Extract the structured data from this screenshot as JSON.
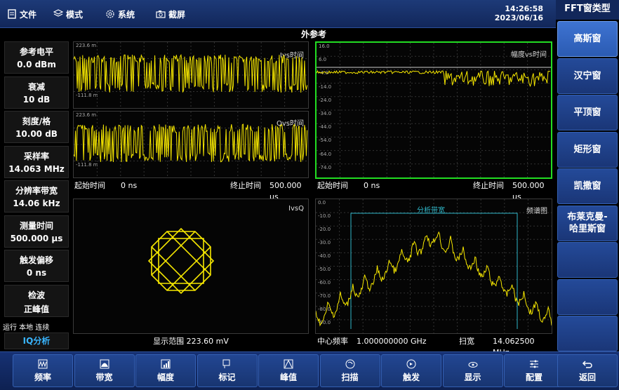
{
  "menu": [
    {
      "label": "文件",
      "icon": "file-icon"
    },
    {
      "label": "模式",
      "icon": "layers-icon"
    },
    {
      "label": "系统",
      "icon": "gear-icon"
    },
    {
      "label": "截屏",
      "icon": "camera-icon"
    }
  ],
  "clock": {
    "time": "14:26:58",
    "date": "2023/06/16"
  },
  "side": {
    "title": "FFT窗类型",
    "buttons": [
      {
        "label": "高斯窗",
        "active": true
      },
      {
        "label": "汉宁窗"
      },
      {
        "label": "平顶窗"
      },
      {
        "label": "矩形窗"
      },
      {
        "label": "凯撒窗"
      },
      {
        "label": "布莱克曼-\n哈里斯窗"
      },
      {
        "label": ""
      },
      {
        "label": ""
      },
      {
        "label": ""
      }
    ],
    "back": "返回"
  },
  "params": [
    {
      "label": "参考电平",
      "value": "0.0 dBm"
    },
    {
      "label": "衰减",
      "value": "10 dB"
    },
    {
      "label": "刻度/格",
      "value": "10.00 dB"
    },
    {
      "label": "采样率",
      "value": "14.063 MHz"
    },
    {
      "label": "分辨率带宽",
      "value": "14.06 kHz"
    },
    {
      "label": "测量时间",
      "value": "500.000 µs"
    },
    {
      "label": "触发偏移",
      "value": "0 ns"
    },
    {
      "label": "检波",
      "value": "正峰值"
    }
  ],
  "run": {
    "state": "运行 本地 连续",
    "mode": "IQ分析"
  },
  "center_title": "外参考",
  "panels": {
    "ivt": {
      "title": "Ivs时间",
      "top": "223.6 m",
      "bottom": "-111.8 m"
    },
    "qvt": {
      "title": "Qvs时间",
      "top": "223.6 m",
      "bottom": "-111.8 m"
    },
    "time_axis": {
      "start_label": "起始时间",
      "start": "0 ns",
      "stop_label": "终止时间",
      "stop": "500.000 µs"
    },
    "amp": {
      "title": "幅度vs时间",
      "ticks": [
        "16.0",
        "6.0",
        "-4.0",
        "-14.0",
        "-24.0",
        "-34.0",
        "-44.0",
        "-54.0",
        "-64.0",
        "-74.0"
      ]
    },
    "iq": {
      "title": "IvsQ",
      "range": "显示范围 223.60 mV"
    },
    "spec": {
      "title": "频谱图",
      "band": "分析带宽",
      "ticks": [
        "0.0",
        "-10.0",
        "-20.0",
        "-30.0",
        "-40.0",
        "-50.0",
        "-60.0",
        "-70.0",
        "-80.0",
        "-90.0"
      ],
      "center_label": "中心频率",
      "center": "1.000000000 GHz",
      "span_label": "扫宽",
      "span": "14.062500 MHz"
    }
  },
  "bottom": [
    {
      "label": "频率",
      "icon": "frequency-icon"
    },
    {
      "label": "带宽",
      "icon": "bandwidth-icon"
    },
    {
      "label": "幅度",
      "icon": "amplitude-icon"
    },
    {
      "label": "标记",
      "icon": "marker-icon"
    },
    {
      "label": "峰值",
      "icon": "peak-icon"
    },
    {
      "label": "扫描",
      "icon": "sweep-icon"
    },
    {
      "label": "触发",
      "icon": "trigger-icon"
    },
    {
      "label": "显示",
      "icon": "display-icon"
    },
    {
      "label": "配置",
      "icon": "config-icon"
    }
  ],
  "colors": {
    "trace": "#f5e600",
    "accent": "#39b5ff",
    "highlight": "#22dd22",
    "band": "#2fb7c9"
  }
}
